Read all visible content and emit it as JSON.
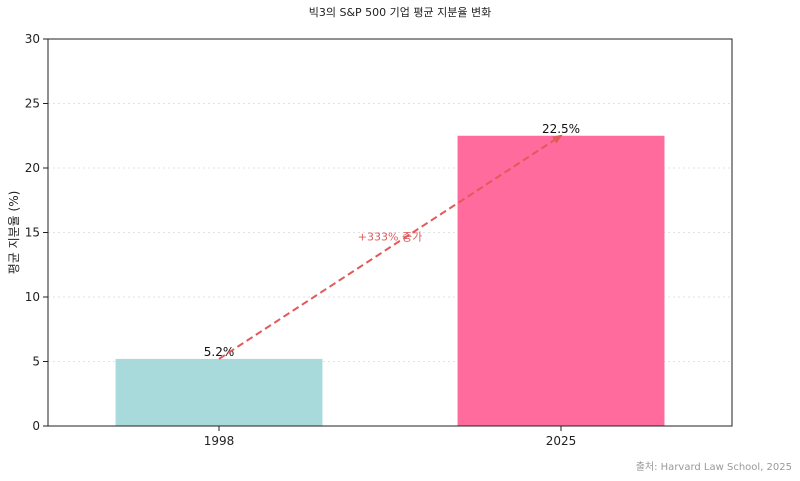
{
  "chart_data": {
    "type": "bar",
    "title": "빅3의 S&P 500 기업 평균 지분율 변화",
    "xlabel": "",
    "ylabel": "평균 지분율 (%)",
    "categories": [
      "1998",
      "2025"
    ],
    "values": [
      5.2,
      22.5
    ],
    "value_labels": [
      "5.2%",
      "22.5%"
    ],
    "bar_colors": [
      "#a8dadc",
      "#ff6b9d"
    ],
    "ylim": [
      0,
      30
    ],
    "yticks": [
      0,
      5,
      10,
      15,
      20,
      25,
      30
    ],
    "grid": "horizontal, dotted",
    "annotation": {
      "text": "+333% 증가",
      "color": "#e05a5a",
      "arrow": "dashed, from 1998 bar top to 2025 bar top"
    }
  },
  "source": "출처: Harvard Law School, 2025"
}
